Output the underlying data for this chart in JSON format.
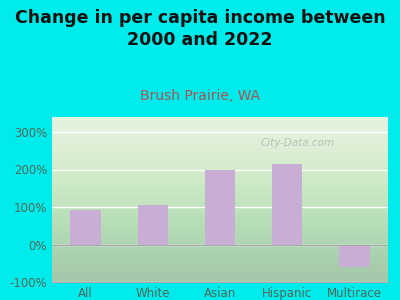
{
  "title": "Change in per capita income between\n2000 and 2022",
  "subtitle": "Brush Prairie, WA",
  "categories": [
    "All",
    "White",
    "Asian",
    "Hispanic",
    "Multirace"
  ],
  "values": [
    93,
    105,
    200,
    215,
    -60
  ],
  "bar_color": "#c8aed4",
  "background_outer": "#00ecec",
  "background_plot_top": "#e8f5e0",
  "background_plot_bottom": "#f5faf0",
  "title_fontsize": 12.5,
  "subtitle_fontsize": 10,
  "subtitle_color": "#b05050",
  "title_color": "#111111",
  "tick_color": "#556655",
  "ylim": [
    -100,
    340
  ],
  "yticks": [
    -100,
    0,
    100,
    200,
    300
  ],
  "ytick_labels": [
    "-100%",
    "0%",
    "100%",
    "200%",
    "300%"
  ],
  "watermark": "City-Data.com",
  "grid_color": "#ffffff"
}
